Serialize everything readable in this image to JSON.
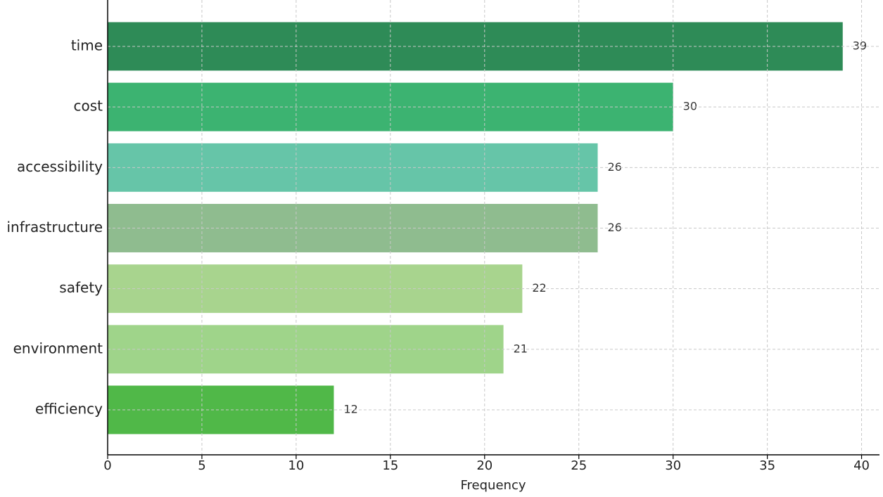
{
  "chart_data": {
    "type": "barh",
    "categories": [
      "time",
      "cost",
      "accessibility",
      "infrastructure",
      "safety",
      "environment",
      "efficiency"
    ],
    "values": [
      39,
      30,
      26,
      26,
      22,
      21,
      12
    ],
    "colors": [
      "#2e8b57",
      "#3cb371",
      "#66c5a8",
      "#8fbc8f",
      "#a8d48e",
      "#9fd48a",
      "#50b848"
    ],
    "xlabel": "Frequency",
    "xlim": [
      0,
      40.95
    ],
    "xticks": [
      0,
      5,
      10,
      15,
      20,
      25,
      30,
      35,
      40
    ],
    "grid": true
  }
}
